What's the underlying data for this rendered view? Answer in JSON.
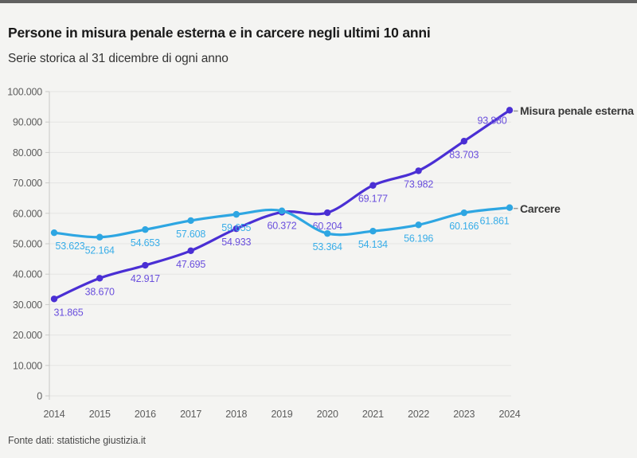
{
  "page": {
    "footer": "Fonte dati: statistiche giustizia.it"
  },
  "colors": {
    "background": "#f4f4f2",
    "top_bar": "#616161",
    "misura_line": "#4a2fd4",
    "misura_label": "#6a4fdd",
    "carcere_line": "#2ea6e2",
    "carcere_label": "#38ade8",
    "grid": "#e5e5e3",
    "axis": "#c9c9c7",
    "tick_text": "#5c5c5c",
    "legend_connector": "#9a9a9a"
  },
  "chart_data": {
    "type": "line",
    "title": "Persone in misura penale esterna e in carcere negli ultimi 10 anni",
    "subtitle": "Serie storica al 31 dicembre di ogni anno",
    "xlabel": "",
    "ylabel": "",
    "categories": [
      "2014",
      "2015",
      "2016",
      "2017",
      "2018",
      "2019",
      "2020",
      "2021",
      "2022",
      "2023",
      "2024"
    ],
    "series": [
      {
        "name": "Misura penale esterna",
        "values": [
          31865,
          38670,
          42917,
          47695,
          54933,
          60372,
          60204,
          69177,
          73982,
          83703,
          93880
        ],
        "labels": [
          "31.865",
          "38.670",
          "42.917",
          "47.695",
          "54.933",
          "60.372",
          "60.204",
          "69.177",
          "73.982",
          "83.703",
          "93.880"
        ]
      },
      {
        "name": "Carcere",
        "values": [
          53623,
          52164,
          54653,
          57608,
          59655,
          60800,
          53364,
          54134,
          56196,
          60166,
          61861
        ],
        "labels": [
          "53.623",
          "52.164",
          "54.653",
          "57.608",
          "59.655",
          "",
          "53.364",
          "54.134",
          "56.196",
          "60.166",
          "61.861"
        ]
      }
    ],
    "ylim": [
      0,
      100000
    ],
    "y_ticks": [
      "0",
      "10.000",
      "20.000",
      "30.000",
      "40.000",
      "50.000",
      "60.000",
      "70.000",
      "80.000",
      "90.000",
      "100.000"
    ],
    "grid": true,
    "legend_position": "end-of-lines-right"
  }
}
